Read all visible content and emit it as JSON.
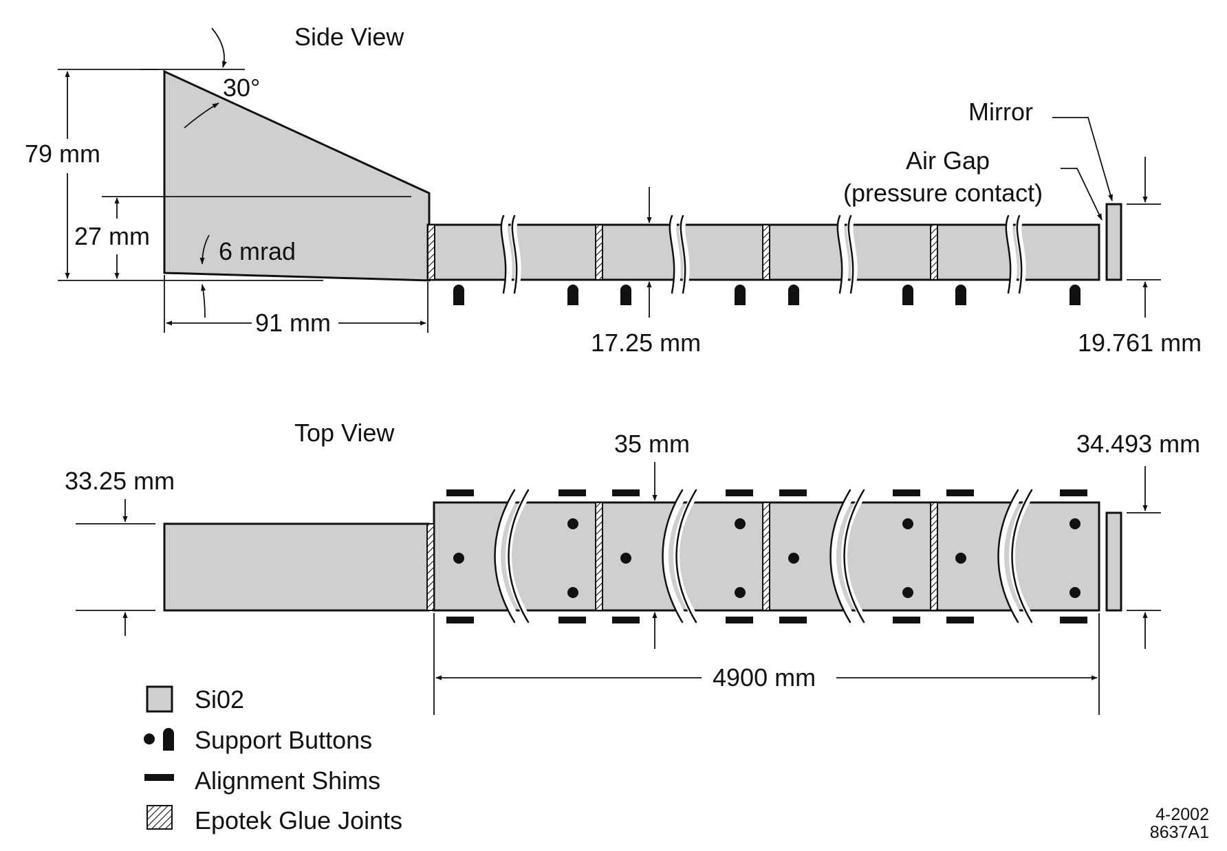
{
  "side_view": {
    "title": "Side View",
    "angle_label": "30°",
    "height_label": "79 mm",
    "lower_height_label": "27 mm",
    "slope_label": "6 mrad",
    "length_label": "91 mm",
    "bar_thickness_label": "17.25 mm",
    "mirror_thickness_label": "19.761 mm",
    "mirror_label": "Mirror",
    "air_gap_label": "Air Gap",
    "air_gap_note": "(pressure contact)"
  },
  "top_view": {
    "title": "Top View",
    "wedge_width_label": "33.25 mm",
    "bar_width_label": "35 mm",
    "mirror_width_label": "34.493 mm",
    "total_length_label": "4900 mm"
  },
  "legend": {
    "items": [
      {
        "label": "Si02",
        "icon": "sio2-swatch-icon"
      },
      {
        "label": "Support Buttons",
        "icon": "support-button-icon"
      },
      {
        "label": "Alignment Shims",
        "icon": "alignment-shim-icon"
      },
      {
        "label": "Epotek Glue Joints",
        "icon": "glue-joint-hatch-icon"
      }
    ]
  },
  "footer": {
    "date_code": "4-2002",
    "drawing_id": "8637A1"
  },
  "colors": {
    "sio2_fill": "#cfcfcf",
    "ink": "#111111",
    "background": "#ffffff"
  }
}
